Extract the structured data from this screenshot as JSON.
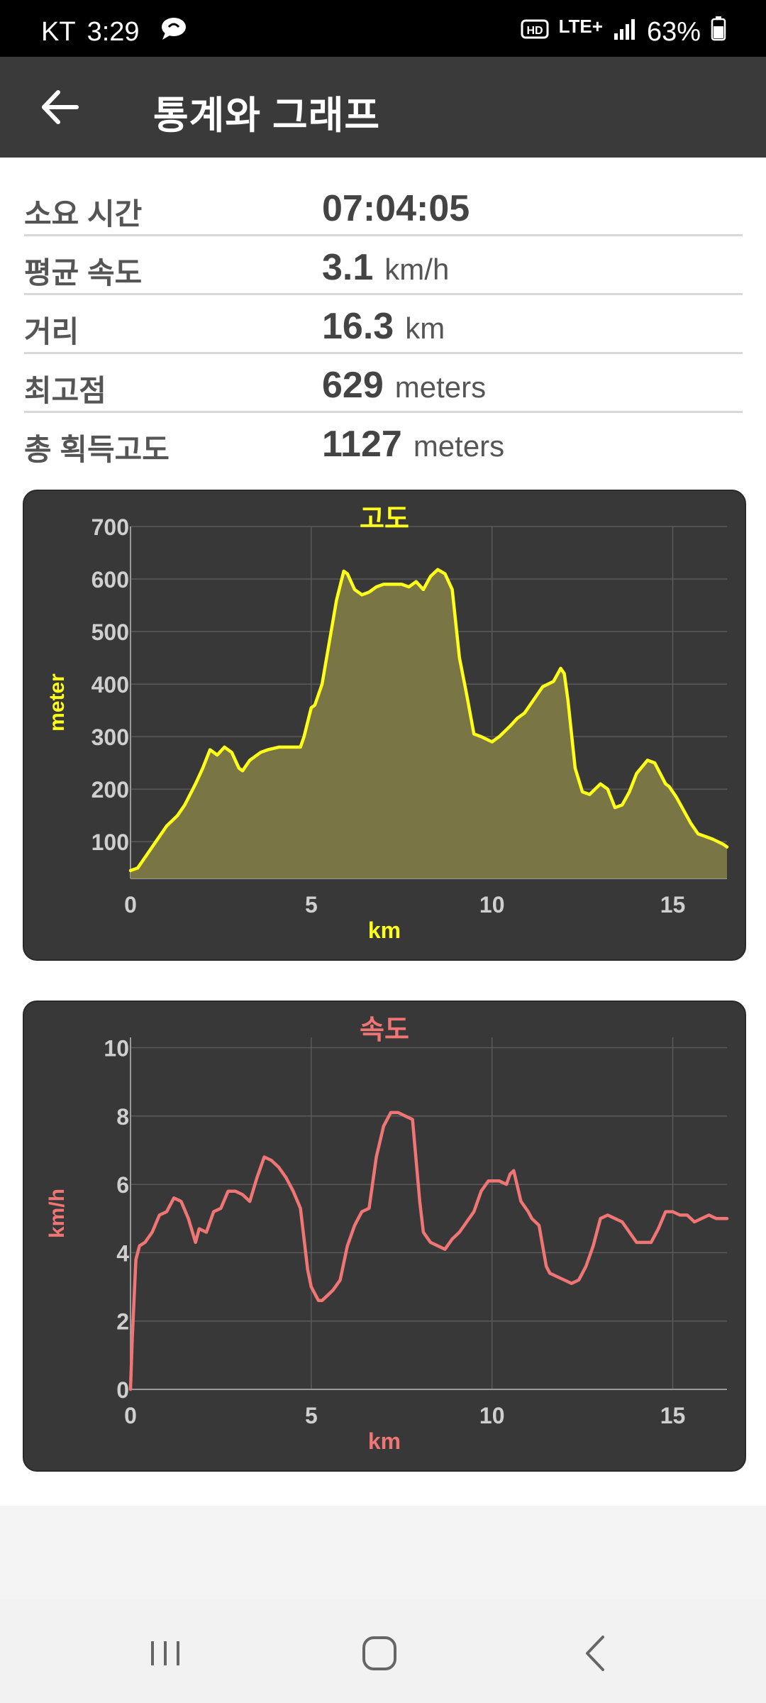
{
  "status_bar": {
    "carrier": "KT",
    "time": "3:29",
    "network": "LTE+",
    "battery": "63%",
    "icons": [
      "chat-bubble-icon",
      "hd-voice-icon",
      "lte-icon",
      "signal-icon",
      "battery-icon"
    ]
  },
  "app_bar": {
    "title": "통계와 그래프",
    "back_icon": "arrow-left-icon"
  },
  "stats": [
    {
      "label": "소요 시간",
      "value": "07:04:05",
      "unit": ""
    },
    {
      "label": "평균 속도",
      "value": "3.1",
      "unit": "km/h"
    },
    {
      "label": "거리",
      "value": "16.3",
      "unit": "km"
    },
    {
      "label": "최고점",
      "value": "629",
      "unit": "meters"
    },
    {
      "label": "총 획득고도",
      "value": "1127",
      "unit": "meters"
    }
  ],
  "colors": {
    "altitude": "#ffff1a",
    "altitude_fill": "#7a7544",
    "speed": "#f07575",
    "card_bg": "#383838",
    "app_bar": "#3a3a3a"
  },
  "chart_data": [
    {
      "type": "area",
      "title": "고도",
      "xlabel": "km",
      "ylabel": "meter",
      "xlim": [
        0,
        16.5
      ],
      "ylim": [
        30,
        700
      ],
      "xticks": [
        0,
        5,
        10,
        15
      ],
      "yticks": [
        100,
        200,
        300,
        400,
        500,
        600,
        700
      ],
      "grid": true,
      "series": [
        {
          "x": [
            0,
            0.2,
            0.5,
            0.8,
            1.0,
            1.3,
            1.5,
            1.8,
            2.0,
            2.2,
            2.4,
            2.6,
            2.8,
            3.0,
            3.1,
            3.3,
            3.6,
            3.8,
            4.1,
            4.4,
            4.7,
            4.8,
            5.0,
            5.1,
            5.3,
            5.5,
            5.7,
            5.9,
            6.0,
            6.2,
            6.4,
            6.6,
            6.8,
            7.0,
            7.2,
            7.5,
            7.7,
            7.9,
            8.1,
            8.3,
            8.5,
            8.7,
            8.9,
            9.1,
            9.3,
            9.5,
            9.7,
            10.0,
            10.2,
            10.5,
            10.7,
            10.9,
            11.2,
            11.4,
            11.7,
            11.9,
            12.0,
            12.1,
            12.3,
            12.5,
            12.7,
            13.0,
            13.2,
            13.4,
            13.6,
            13.8,
            14.0,
            14.3,
            14.5,
            14.8,
            14.9,
            15.1,
            15.3,
            15.5,
            15.7,
            15.9,
            16.1,
            16.4,
            16.5
          ],
          "values": [
            45,
            50,
            80,
            110,
            130,
            150,
            170,
            210,
            240,
            275,
            265,
            280,
            270,
            240,
            235,
            255,
            270,
            275,
            280,
            280,
            280,
            300,
            355,
            360,
            400,
            480,
            560,
            615,
            610,
            580,
            570,
            575,
            585,
            590,
            590,
            590,
            585,
            595,
            580,
            605,
            618,
            610,
            580,
            450,
            380,
            305,
            300,
            290,
            300,
            320,
            335,
            345,
            375,
            395,
            405,
            430,
            420,
            370,
            240,
            195,
            190,
            210,
            200,
            165,
            170,
            195,
            230,
            255,
            250,
            210,
            205,
            185,
            160,
            135,
            115,
            110,
            105,
            95,
            90
          ]
        }
      ]
    },
    {
      "type": "line",
      "title": "속도",
      "xlabel": "km",
      "ylabel": "km/h",
      "xlim": [
        0,
        16.5
      ],
      "ylim": [
        0,
        10.3
      ],
      "xticks": [
        0,
        5,
        10,
        15
      ],
      "yticks": [
        0,
        2,
        4,
        6,
        8,
        10
      ],
      "grid": true,
      "series": [
        {
          "x": [
            0,
            0.05,
            0.15,
            0.25,
            0.4,
            0.6,
            0.8,
            1.0,
            1.2,
            1.4,
            1.6,
            1.8,
            1.9,
            2.1,
            2.3,
            2.5,
            2.7,
            2.9,
            3.1,
            3.3,
            3.5,
            3.7,
            3.9,
            4.1,
            4.3,
            4.5,
            4.7,
            4.9,
            5.0,
            5.2,
            5.3,
            5.5,
            5.6,
            5.8,
            6.0,
            6.2,
            6.4,
            6.6,
            6.8,
            7.0,
            7.2,
            7.4,
            7.6,
            7.8,
            8.0,
            8.1,
            8.3,
            8.5,
            8.7,
            8.9,
            9.1,
            9.3,
            9.5,
            9.7,
            9.9,
            10.0,
            10.2,
            10.4,
            10.5,
            10.6,
            10.8,
            11.0,
            11.1,
            11.3,
            11.5,
            11.6,
            11.8,
            12.0,
            12.2,
            12.4,
            12.6,
            12.8,
            13.0,
            13.2,
            13.4,
            13.6,
            13.8,
            14.0,
            14.2,
            14.4,
            14.6,
            14.8,
            15.0,
            15.2,
            15.4,
            15.6,
            15.8,
            16.0,
            16.2,
            16.5
          ],
          "values": [
            0,
            1.5,
            3.8,
            4.2,
            4.3,
            4.6,
            5.1,
            5.2,
            5.6,
            5.5,
            5.0,
            4.3,
            4.7,
            4.6,
            5.2,
            5.3,
            5.8,
            5.8,
            5.7,
            5.5,
            6.2,
            6.8,
            6.7,
            6.5,
            6.2,
            5.8,
            5.3,
            3.5,
            3.0,
            2.6,
            2.6,
            2.8,
            2.9,
            3.2,
            4.2,
            4.8,
            5.2,
            5.3,
            6.8,
            7.7,
            8.1,
            8.1,
            8.0,
            7.9,
            5.5,
            4.6,
            4.3,
            4.2,
            4.1,
            4.4,
            4.6,
            4.9,
            5.2,
            5.8,
            6.1,
            6.1,
            6.1,
            6.0,
            6.3,
            6.4,
            5.5,
            5.2,
            5.0,
            4.8,
            3.6,
            3.4,
            3.3,
            3.2,
            3.1,
            3.2,
            3.6,
            4.2,
            5.0,
            5.1,
            5.0,
            4.9,
            4.6,
            4.3,
            4.3,
            4.3,
            4.7,
            5.2,
            5.2,
            5.1,
            5.1,
            4.9,
            5.0,
            5.1,
            5.0,
            5.0
          ]
        }
      ]
    }
  ]
}
